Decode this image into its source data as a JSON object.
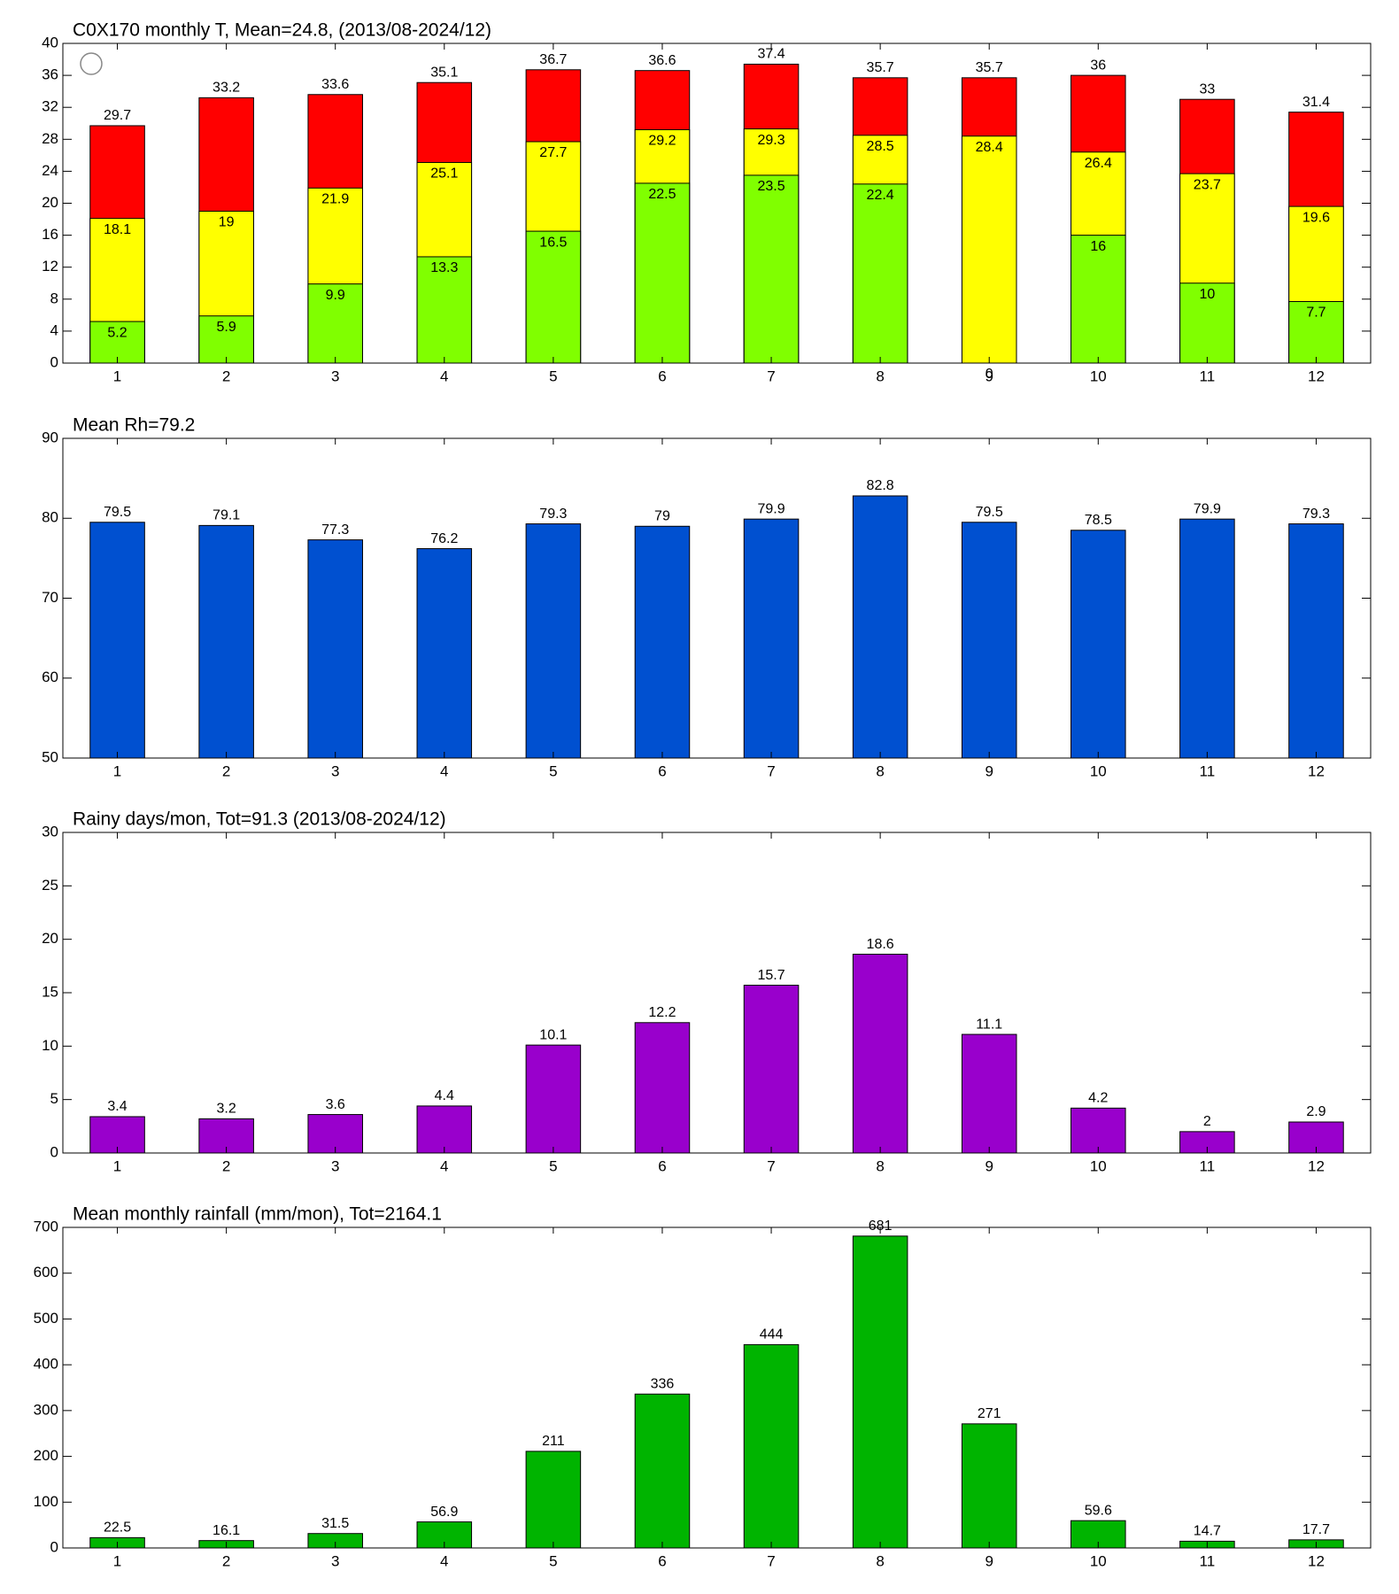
{
  "chart_data": [
    {
      "type": "bar",
      "title": "C0X170 monthly T, Mean=24.8, (2013/08-2024/12)",
      "categories": [
        "1",
        "2",
        "3",
        "4",
        "5",
        "6",
        "7",
        "8",
        "9",
        "10",
        "11",
        "12"
      ],
      "series": [
        {
          "color": "#80ff00",
          "values": [
            5.2,
            5.9,
            9.9,
            13.3,
            16.5,
            22.5,
            23.5,
            22.4,
            0,
            16,
            10,
            7.7
          ]
        },
        {
          "color": "#ffff00",
          "values": [
            18.1,
            19,
            21.9,
            25.1,
            27.7,
            29.2,
            29.3,
            28.5,
            28.4,
            26.4,
            23.7,
            19.6
          ]
        },
        {
          "color": "#ff0000",
          "values": [
            29.7,
            33.2,
            33.6,
            35.1,
            36.7,
            36.6,
            37.4,
            35.7,
            35.7,
            36,
            33,
            31.4
          ]
        }
      ],
      "ylim": [
        0,
        40
      ],
      "yticks": [
        0,
        4,
        8,
        12,
        16,
        20,
        24,
        28,
        32,
        36,
        40
      ]
    },
    {
      "type": "bar",
      "title": "Mean Rh=79.2",
      "categories": [
        "1",
        "2",
        "3",
        "4",
        "5",
        "6",
        "7",
        "8",
        "9",
        "10",
        "11",
        "12"
      ],
      "series": [
        {
          "color": "#0050d0",
          "values": [
            79.5,
            79.1,
            77.3,
            76.2,
            79.3,
            79,
            79.9,
            82.8,
            79.5,
            78.5,
            79.9,
            79.3
          ]
        }
      ],
      "ylim": [
        50,
        90
      ],
      "yticks": [
        50,
        60,
        70,
        80,
        90
      ]
    },
    {
      "type": "bar",
      "title": "Rainy days/mon, Tot=91.3 (2013/08-2024/12)",
      "categories": [
        "1",
        "2",
        "3",
        "4",
        "5",
        "6",
        "7",
        "8",
        "9",
        "10",
        "11",
        "12"
      ],
      "series": [
        {
          "color": "#9900cc",
          "values": [
            3.4,
            3.2,
            3.6,
            4.4,
            10.1,
            12.2,
            15.7,
            18.6,
            11.1,
            4.2,
            2,
            2.9
          ]
        }
      ],
      "ylim": [
        0,
        30
      ],
      "yticks": [
        0,
        5,
        10,
        15,
        20,
        25,
        30
      ]
    },
    {
      "type": "bar",
      "title": "Mean monthly rainfall (mm/mon), Tot=2164.1",
      "categories": [
        "1",
        "2",
        "3",
        "4",
        "5",
        "6",
        "7",
        "8",
        "9",
        "10",
        "11",
        "12"
      ],
      "series": [
        {
          "color": "#00b400",
          "values": [
            22.5,
            16.1,
            31.5,
            56.9,
            211,
            336,
            444,
            681,
            271,
            59.6,
            14.7,
            17.7
          ]
        }
      ],
      "ylim": [
        0,
        700
      ],
      "yticks": [
        0,
        100,
        200,
        300,
        400,
        500,
        600,
        700
      ]
    }
  ]
}
